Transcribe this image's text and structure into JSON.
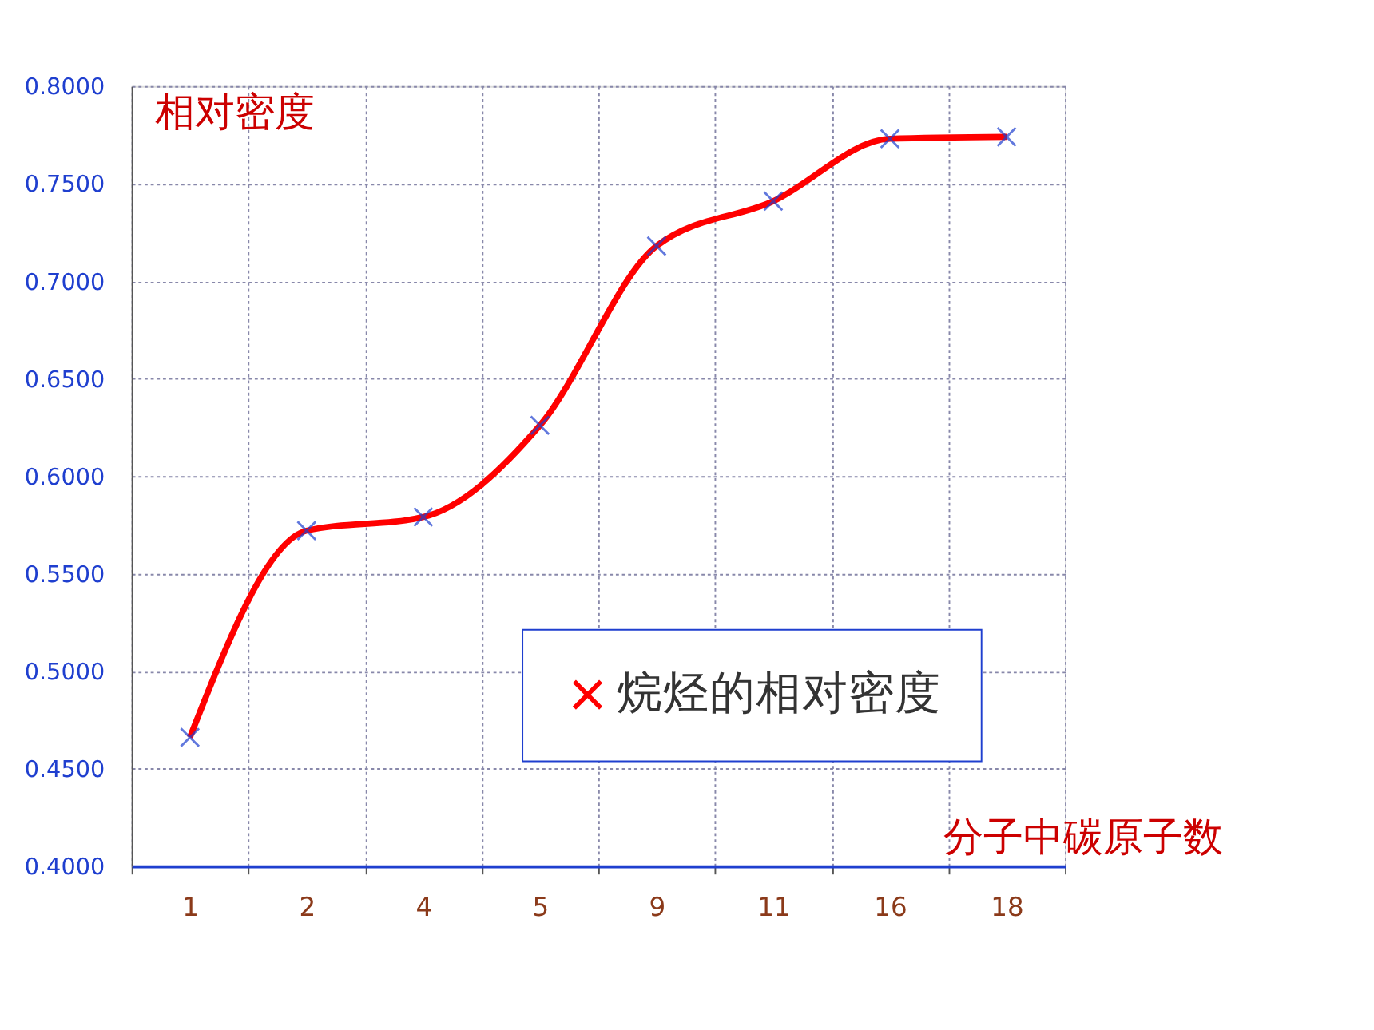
{
  "chart_data": {
    "type": "line",
    "xlabel": "分子中碳原子数",
    "ylabel": "相对密度",
    "categories": [
      "1",
      "2",
      "4",
      "5",
      "9",
      "11",
      "16",
      "18"
    ],
    "series": [
      {
        "name": "烷烃的相对密度",
        "color": "#ff0000",
        "values": [
          0.466,
          0.572,
          0.579,
          0.626,
          0.718,
          0.741,
          0.773,
          0.774
        ]
      }
    ],
    "ylim": [
      0.4,
      0.8
    ],
    "yticks": [
      {
        "value": 0.4,
        "label": "0.4000"
      },
      {
        "value": 0.45,
        "label": "0.4500"
      },
      {
        "value": 0.5,
        "label": "0.5000"
      },
      {
        "value": 0.55,
        "label": "0.5500"
      },
      {
        "value": 0.6,
        "label": "0.6000"
      },
      {
        "value": 0.65,
        "label": "0.6500"
      },
      {
        "value": 0.7,
        "label": "0.7000"
      },
      {
        "value": 0.75,
        "label": "0.7500"
      },
      {
        "value": 0.8,
        "label": "0.8000"
      }
    ],
    "grid": true,
    "legend": "bottom right",
    "marker": "cross",
    "line_style": "solid"
  }
}
